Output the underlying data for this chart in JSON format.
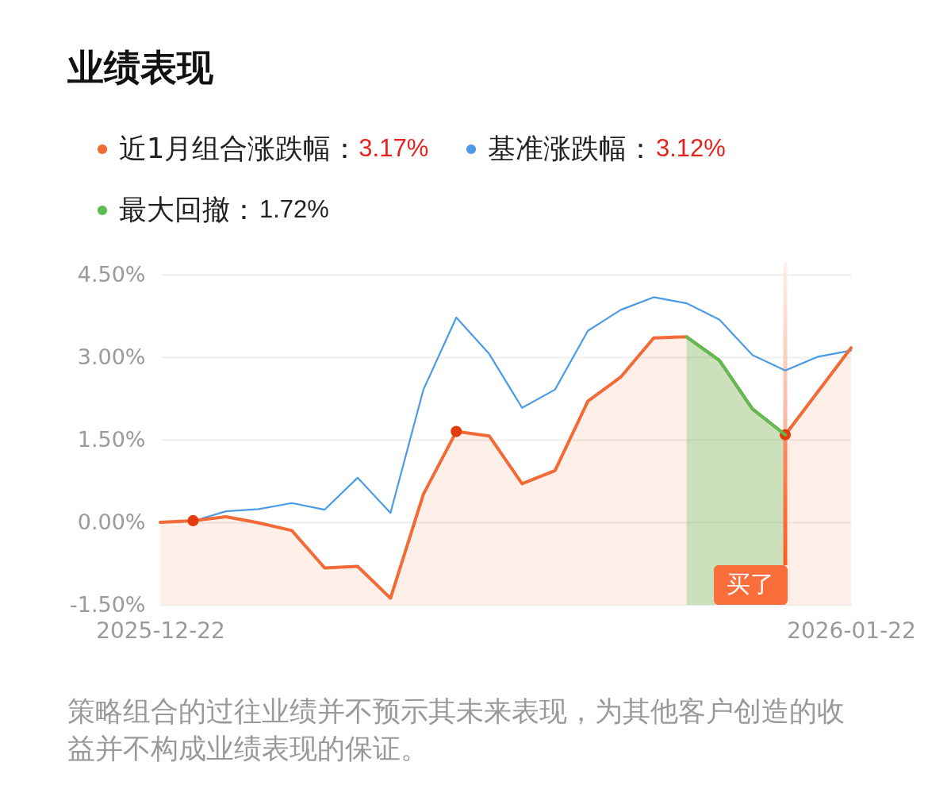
{
  "chart_data": {
    "type": "line",
    "title": "业绩表现",
    "marker": "none",
    "categories": [
      "2025-12-22",
      null,
      null,
      null,
      null,
      null,
      null,
      null,
      null,
      null,
      null,
      null,
      null,
      null,
      null,
      null,
      null,
      null,
      null,
      null,
      null,
      "2026-01-22"
    ],
    "ylim": [
      -1.5,
      4.5
    ],
    "yticks": [
      {
        "value": -1.5,
        "label": "-1.50%"
      },
      {
        "value": 0,
        "label": "0.00%"
      },
      {
        "value": 1.5,
        "label": "1.50%"
      },
      {
        "value": 3,
        "label": "3.00%"
      },
      {
        "value": 4.5,
        "label": "4.50%"
      }
    ],
    "grid": "y",
    "legend": "top left",
    "series": [
      {
        "type": "scatter",
        "marker": "circle",
        "color": "#e23c0e",
        "values": [
          null,
          0.03,
          null,
          null,
          null,
          null,
          null,
          null,
          null,
          1.65,
          null,
          null,
          null,
          null,
          null,
          null,
          null,
          null,
          null,
          1.59,
          null,
          null
        ]
      },
      {
        "name": "近1月组合涨跌幅：",
        "color": "#f26a35",
        "values": [
          0.0,
          0.03,
          0.1,
          -0.01,
          -0.15,
          -0.83,
          -0.8,
          -1.38,
          0.51,
          1.65,
          1.57,
          0.7,
          0.94,
          2.2,
          2.64,
          3.35,
          3.37,
          2.94,
          2.06,
          1.59,
          2.38,
          3.17
        ],
        "lower": [
          -1.5,
          -1.5,
          -1.5,
          -1.5,
          -1.5,
          -1.5,
          -1.5,
          -1.5,
          -1.5,
          -1.5,
          -1.5,
          -1.5,
          -1.5,
          -1.5,
          -1.5,
          -1.5,
          -1.5,
          -1.5,
          -1.5,
          -1.5,
          -1.5,
          -1.5
        ],
        "upper": [
          0.0,
          0.03,
          0.1,
          -0.01,
          -0.15,
          -0.83,
          -0.8,
          -1.38,
          0.51,
          1.65,
          1.57,
          0.7,
          0.94,
          2.2,
          2.64,
          3.35,
          3.37,
          2.94,
          2.06,
          1.59,
          2.38,
          3.17
        ]
      },
      {
        "name": "基准涨跌幅：",
        "color": "#4c9be6",
        "values": [
          0.0,
          0.02,
          0.2,
          0.24,
          0.35,
          0.23,
          0.81,
          0.17,
          2.41,
          3.72,
          3.06,
          2.08,
          2.41,
          3.48,
          3.86,
          4.09,
          3.98,
          3.68,
          3.04,
          2.76,
          3.01,
          3.12
        ]
      },
      {
        "name": "最大回撤：",
        "color": "#5bbd52",
        "values": [
          null,
          null,
          null,
          null,
          null,
          null,
          null,
          null,
          null,
          null,
          null,
          null,
          null,
          null,
          null,
          null,
          3.37,
          2.94,
          2.06,
          1.59,
          null,
          null
        ],
        "lower": [
          null,
          null,
          null,
          null,
          null,
          null,
          null,
          null,
          null,
          null,
          null,
          null,
          null,
          null,
          null,
          null,
          -1.5,
          -1.5,
          -1.5,
          -1.5,
          null,
          null
        ],
        "upper": [
          null,
          null,
          null,
          null,
          null,
          null,
          null,
          null,
          null,
          null,
          null,
          null,
          null,
          null,
          null,
          null,
          3.37,
          2.94,
          2.06,
          1.59,
          null,
          null
        ]
      }
    ],
    "annotations": [
      "3.17%",
      "3.12%",
      "1.72%",
      "买了",
      "策略组合的过往业绩并不预示其未来表现，为其他客户创造的收益并不构成业绩表现的保证。"
    ]
  }
}
